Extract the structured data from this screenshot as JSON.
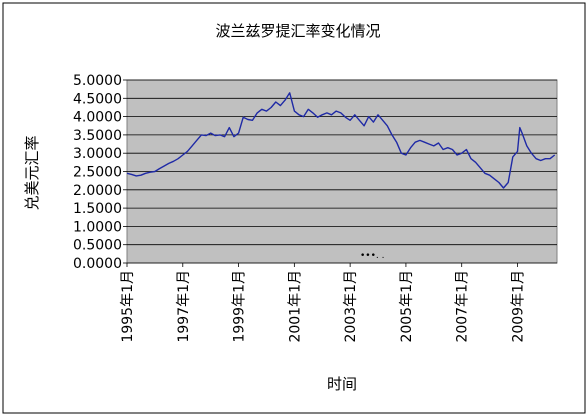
{
  "chart_data": {
    "type": "line",
    "title": "波兰兹罗提汇率变化情况",
    "xlabel": "时间",
    "ylabel": "兑美元汇率",
    "ylim": [
      0,
      5
    ],
    "yticks": [
      0,
      0.5,
      1,
      1.5,
      2,
      2.5,
      3,
      3.5,
      4,
      4.5,
      5
    ],
    "ytick_labels": [
      "0.0000",
      "0.5000",
      "1.0000",
      "1.5000",
      "2.0000",
      "2.5000",
      "3.0000",
      "3.5000",
      "4.0000",
      "4.5000",
      "5.0000"
    ],
    "xlim": [
      "1995-01",
      "2010-06"
    ],
    "xticks": [
      "1995-01",
      "1997-01",
      "1999-01",
      "2001-01",
      "2003-01",
      "2005-01",
      "2007-01",
      "2009-01"
    ],
    "xtick_labels": [
      "1995年1月",
      "1997年1月",
      "1999年1月",
      "2001年1月",
      "2003年1月",
      "2005年1月",
      "2007年1月",
      "2009年1月"
    ],
    "grid": "horizontal",
    "background": "#c0c0c0",
    "line_color": "#1f2aa6",
    "annotation": "•••. .",
    "series": [
      {
        "points": [
          [
            "1995-01",
            2.45
          ],
          [
            "1995-03",
            2.42
          ],
          [
            "1995-05",
            2.38
          ],
          [
            "1995-07",
            2.4
          ],
          [
            "1995-09",
            2.45
          ],
          [
            "1995-11",
            2.48
          ],
          [
            "1996-01",
            2.5
          ],
          [
            "1996-03",
            2.58
          ],
          [
            "1996-05",
            2.65
          ],
          [
            "1996-07",
            2.72
          ],
          [
            "1996-09",
            2.78
          ],
          [
            "1996-11",
            2.85
          ],
          [
            "1997-01",
            2.95
          ],
          [
            "1997-03",
            3.05
          ],
          [
            "1997-05",
            3.2
          ],
          [
            "1997-07",
            3.35
          ],
          [
            "1997-09",
            3.5
          ],
          [
            "1997-11",
            3.48
          ],
          [
            "1998-01",
            3.55
          ],
          [
            "1998-03",
            3.48
          ],
          [
            "1998-05",
            3.5
          ],
          [
            "1998-07",
            3.45
          ],
          [
            "1998-09",
            3.7
          ],
          [
            "1998-11",
            3.45
          ],
          [
            "1999-01",
            3.55
          ],
          [
            "1999-03",
            3.98
          ],
          [
            "1999-05",
            3.92
          ],
          [
            "1999-07",
            3.9
          ],
          [
            "1999-09",
            4.1
          ],
          [
            "1999-11",
            4.2
          ],
          [
            "2000-01",
            4.15
          ],
          [
            "2000-03",
            4.25
          ],
          [
            "2000-05",
            4.4
          ],
          [
            "2000-07",
            4.3
          ],
          [
            "2000-09",
            4.45
          ],
          [
            "2000-11",
            4.65
          ],
          [
            "2001-01",
            4.15
          ],
          [
            "2001-03",
            4.05
          ],
          [
            "2001-05",
            4.0
          ],
          [
            "2001-07",
            4.2
          ],
          [
            "2001-09",
            4.1
          ],
          [
            "2001-11",
            3.98
          ],
          [
            "2002-01",
            4.05
          ],
          [
            "2002-03",
            4.1
          ],
          [
            "2002-05",
            4.05
          ],
          [
            "2002-07",
            4.15
          ],
          [
            "2002-09",
            4.1
          ],
          [
            "2002-11",
            3.98
          ],
          [
            "2003-01",
            3.9
          ],
          [
            "2003-03",
            4.05
          ],
          [
            "2003-05",
            3.9
          ],
          [
            "2003-07",
            3.75
          ],
          [
            "2003-09",
            4.0
          ],
          [
            "2003-11",
            3.85
          ],
          [
            "2004-01",
            4.05
          ],
          [
            "2004-03",
            3.9
          ],
          [
            "2004-05",
            3.75
          ],
          [
            "2004-07",
            3.5
          ],
          [
            "2004-09",
            3.3
          ],
          [
            "2004-11",
            3.0
          ],
          [
            "2005-01",
            2.95
          ],
          [
            "2005-03",
            3.15
          ],
          [
            "2005-05",
            3.3
          ],
          [
            "2005-07",
            3.35
          ],
          [
            "2005-09",
            3.3
          ],
          [
            "2005-11",
            3.25
          ],
          [
            "2006-01",
            3.2
          ],
          [
            "2006-03",
            3.28
          ],
          [
            "2006-05",
            3.1
          ],
          [
            "2006-07",
            3.15
          ],
          [
            "2006-09",
            3.1
          ],
          [
            "2006-11",
            2.95
          ],
          [
            "2007-01",
            3.0
          ],
          [
            "2007-03",
            3.1
          ],
          [
            "2007-05",
            2.85
          ],
          [
            "2007-07",
            2.75
          ],
          [
            "2007-09",
            2.6
          ],
          [
            "2007-11",
            2.45
          ],
          [
            "2008-01",
            2.4
          ],
          [
            "2008-03",
            2.3
          ],
          [
            "2008-05",
            2.2
          ],
          [
            "2008-07",
            2.05
          ],
          [
            "2008-09",
            2.2
          ],
          [
            "2008-10",
            2.55
          ],
          [
            "2008-11",
            2.9
          ],
          [
            "2009-01",
            3.05
          ],
          [
            "2009-02",
            3.7
          ],
          [
            "2009-03",
            3.55
          ],
          [
            "2009-05",
            3.2
          ],
          [
            "2009-07",
            3.0
          ],
          [
            "2009-09",
            2.85
          ],
          [
            "2009-11",
            2.8
          ],
          [
            "2010-01",
            2.85
          ],
          [
            "2010-03",
            2.85
          ],
          [
            "2010-05",
            2.95
          ]
        ]
      }
    ]
  }
}
